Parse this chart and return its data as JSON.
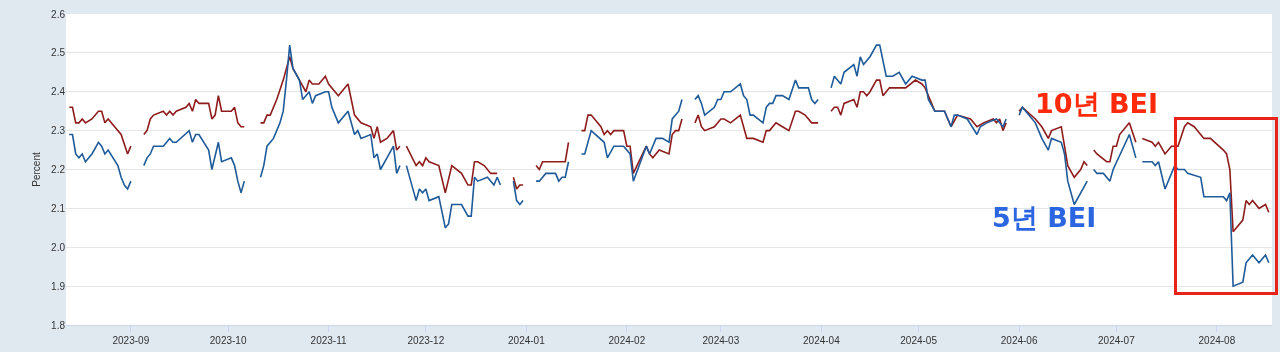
{
  "chart_data": {
    "type": "line",
    "ylabel": "Percent",
    "grid": "y",
    "marker": "none",
    "line_style": "solid",
    "xlim": [
      "2023-08-12",
      "2024-08-18"
    ],
    "xticks": [
      "2023-09",
      "2023-10",
      "2023-11",
      "2023-12",
      "2024-01",
      "2024-02",
      "2024-03",
      "2024-04",
      "2024-05",
      "2024-06",
      "2024-07",
      "2024-08"
    ],
    "ylim": [
      1.8,
      2.6
    ],
    "yticks": [
      1.8,
      1.9,
      {
        "value": 2,
        "label": "2.0"
      },
      2.1,
      2.2,
      2.3,
      2.4,
      2.5,
      2.6
    ],
    "series": [
      {
        "name": "10년 BEI",
        "color": "#8e1c1c",
        "x": [
          "2023-08-13",
          "2023-08-14",
          "2023-08-15",
          "2023-08-16",
          "2023-08-17",
          "2023-08-18",
          "2023-08-20",
          "2023-08-22",
          "2023-08-23",
          "2023-08-24",
          "2023-08-25",
          "2023-08-27",
          "2023-08-29",
          "2023-08-31",
          "2023-09-01",
          "2023-09-03",
          "2023-09-05",
          "2023-09-06",
          "2023-09-07",
          "2023-09-08",
          "2023-09-11",
          "2023-09-12",
          "2023-09-13",
          "2023-09-14",
          "2023-09-15",
          "2023-09-18",
          "2023-09-19",
          "2023-09-20",
          "2023-09-21",
          "2023-09-22",
          "2023-09-25",
          "2023-09-26",
          "2023-09-27",
          "2023-09-28",
          "2023-09-29",
          "2023-10-02",
          "2023-10-03",
          "2023-10-04",
          "2023-10-05",
          "2023-10-06",
          "2023-10-08",
          "2023-10-11",
          "2023-10-12",
          "2023-10-13",
          "2023-10-14",
          "2023-10-16",
          "2023-10-18",
          "2023-10-20",
          "2023-10-21",
          "2023-10-23",
          "2023-10-25",
          "2023-10-26",
          "2023-10-27",
          "2023-10-29",
          "2023-10-31",
          "2023-11-01",
          "2023-11-04",
          "2023-11-07",
          "2023-11-09",
          "2023-11-11",
          "2023-11-14",
          "2023-11-15",
          "2023-11-16",
          "2023-11-17",
          "2023-11-19",
          "2023-11-21",
          "2023-11-22",
          "2023-11-23",
          "2023-11-24",
          "2023-11-25",
          "2023-11-28",
          "2023-11-29",
          "2023-11-30",
          "2023-12-01",
          "2023-12-02",
          "2023-12-05",
          "2023-12-07",
          "2023-12-09",
          "2023-12-12",
          "2023-12-14",
          "2023-12-15",
          "2023-12-16",
          "2023-12-17",
          "2023-12-19",
          "2023-12-21",
          "2023-12-23",
          "2023-12-26",
          "2023-12-28",
          "2023-12-29",
          "2023-12-30",
          "2023-12-31",
          "2024-01-02",
          "2024-01-04",
          "2024-01-05",
          "2024-01-06",
          "2024-01-13",
          "2024-01-14",
          "2024-01-16",
          "2024-01-18",
          "2024-01-19",
          "2024-01-20",
          "2024-01-21",
          "2024-01-24",
          "2024-01-25",
          "2024-01-26",
          "2024-01-27",
          "2024-01-28",
          "2024-01-31",
          "2024-02-01",
          "2024-02-02",
          "2024-02-03",
          "2024-02-07",
          "2024-02-08",
          "2024-02-09",
          "2024-02-11",
          "2024-02-14",
          "2024-02-15",
          "2024-02-16",
          "2024-02-17",
          "2024-02-18",
          "2024-02-20",
          "2024-02-22",
          "2024-02-23",
          "2024-02-24",
          "2024-02-25",
          "2024-02-28",
          "2024-03-01",
          "2024-03-02",
          "2024-03-04",
          "2024-03-07",
          "2024-03-09",
          "2024-03-11",
          "2024-03-14",
          "2024-03-15",
          "2024-03-16",
          "2024-03-18",
          "2024-03-20",
          "2024-03-22",
          "2024-03-24",
          "2024-03-25",
          "2024-03-27",
          "2024-03-29",
          "2024-03-31",
          "2024-04-02",
          "2024-04-04",
          "2024-04-05",
          "2024-04-06",
          "2024-04-07",
          "2024-04-08",
          "2024-04-11",
          "2024-04-12",
          "2024-04-13",
          "2024-04-14",
          "2024-04-15",
          "2024-04-16",
          "2024-04-18",
          "2024-04-19",
          "2024-04-20",
          "2024-04-22",
          "2024-04-27",
          "2024-04-30",
          "2024-05-02",
          "2024-05-03",
          "2024-05-05",
          "2024-05-06",
          "2024-05-09",
          "2024-05-11",
          "2024-05-13",
          "2024-05-17",
          "2024-05-19",
          "2024-05-21",
          "2024-05-24",
          "2024-05-25",
          "2024-05-26",
          "2024-05-27",
          "2024-05-28",
          "2024-05-30",
          "2024-06-01",
          "2024-06-02",
          "2024-06-06",
          "2024-06-08",
          "2024-06-10",
          "2024-06-11",
          "2024-06-14",
          "2024-06-15",
          "2024-06-16",
          "2024-06-18",
          "2024-06-20",
          "2024-06-21",
          "2024-06-22",
          "2024-06-23",
          "2024-06-24",
          "2024-06-25",
          "2024-06-28",
          "2024-06-29",
          "2024-06-30",
          "2024-07-01",
          "2024-07-02",
          "2024-07-05",
          "2024-07-07",
          "2024-07-08",
          "2024-07-09",
          "2024-07-12",
          "2024-07-13",
          "2024-07-14",
          "2024-07-16",
          "2024-07-18",
          "2024-07-19",
          "2024-07-20",
          "2024-07-22",
          "2024-07-23",
          "2024-07-25",
          "2024-07-28",
          "2024-07-30",
          "2024-08-03",
          "2024-08-04",
          "2024-08-05",
          "2024-08-06",
          "2024-08-09",
          "2024-08-10",
          "2024-08-11",
          "2024-08-12",
          "2024-08-14",
          "2024-08-16",
          "2024-08-17"
        ],
        "values": [
          2.36,
          2.36,
          2.32,
          2.32,
          2.33,
          2.32,
          2.33,
          2.35,
          2.35,
          2.32,
          2.33,
          2.31,
          2.29,
          2.24,
          2.26,
          null,
          2.29,
          2.3,
          2.33,
          2.34,
          2.35,
          2.34,
          2.35,
          2.34,
          2.35,
          2.36,
          2.37,
          2.35,
          2.38,
          2.37,
          2.37,
          2.33,
          2.34,
          2.39,
          2.35,
          2.35,
          2.36,
          2.32,
          2.31,
          2.31,
          null,
          2.32,
          2.32,
          2.34,
          2.34,
          2.38,
          2.43,
          2.49,
          2.46,
          2.43,
          2.4,
          2.43,
          2.42,
          2.42,
          2.44,
          2.42,
          2.39,
          2.42,
          2.34,
          2.32,
          2.31,
          2.28,
          2.31,
          2.27,
          2.28,
          2.3,
          2.25,
          2.26,
          null,
          2.26,
          2.21,
          2.22,
          2.21,
          2.23,
          2.22,
          2.21,
          2.14,
          2.21,
          2.19,
          2.16,
          2.16,
          2.22,
          2.22,
          2.21,
          2.19,
          2.19,
          null,
          2.18,
          2.15,
          2.16,
          2.16,
          null,
          2.21,
          2.2,
          2.22,
          2.22,
          2.27,
          null,
          2.3,
          2.3,
          2.34,
          2.34,
          2.31,
          2.29,
          2.3,
          2.29,
          2.3,
          2.3,
          2.26,
          2.26,
          2.19,
          2.26,
          2.24,
          2.23,
          2.25,
          2.24,
          2.29,
          2.3,
          2.3,
          2.33,
          null,
          2.32,
          2.34,
          2.31,
          2.3,
          2.31,
          2.33,
          2.33,
          2.32,
          2.34,
          2.28,
          2.28,
          2.27,
          2.3,
          2.3,
          2.32,
          2.31,
          2.3,
          2.35,
          2.35,
          2.34,
          2.32,
          2.32,
          null,
          2.35,
          2.36,
          2.36,
          2.34,
          2.37,
          2.38,
          2.36,
          2.4,
          2.4,
          2.39,
          2.4,
          2.43,
          2.43,
          2.39,
          2.41,
          2.41,
          2.43,
          2.42,
          2.41,
          2.37,
          2.35,
          2.35,
          2.31,
          2.34,
          2.33,
          2.31,
          2.32,
          2.33,
          2.32,
          2.33,
          2.3,
          2.32,
          null,
          2.35,
          2.36,
          2.33,
          2.31,
          2.28,
          2.3,
          2.31,
          2.26,
          2.21,
          2.18,
          2.2,
          2.22,
          2.21,
          null,
          2.25,
          2.24,
          2.22,
          2.22,
          2.26,
          2.26,
          2.29,
          2.32,
          2.27,
          null,
          2.28,
          2.27,
          2.26,
          2.27,
          2.24,
          2.26,
          2.26,
          2.26,
          2.31,
          2.32,
          2.31,
          2.28,
          2.28,
          2.25,
          2.24,
          2.2,
          2.04,
          2.07,
          2.12,
          2.11,
          2.12,
          2.1,
          2.11,
          2.09
        ]
      },
      {
        "name": "5년 BEI",
        "color": "#1f5b99",
        "x": [
          "2023-08-13",
          "2023-08-14",
          "2023-08-15",
          "2023-08-16",
          "2023-08-17",
          "2023-08-18",
          "2023-08-20",
          "2023-08-22",
          "2023-08-23",
          "2023-08-24",
          "2023-08-25",
          "2023-08-28",
          "2023-08-29",
          "2023-08-30",
          "2023-08-31",
          "2023-09-01",
          "2023-09-03",
          "2023-09-05",
          "2023-09-06",
          "2023-09-07",
          "2023-09-08",
          "2023-09-11",
          "2023-09-13",
          "2023-09-14",
          "2023-09-15",
          "2023-09-19",
          "2023-09-20",
          "2023-09-21",
          "2023-09-22",
          "2023-09-25",
          "2023-09-26",
          "2023-09-28",
          "2023-09-29",
          "2023-10-02",
          "2023-10-03",
          "2023-10-04",
          "2023-10-05",
          "2023-10-06",
          "2023-10-08",
          "2023-10-11",
          "2023-10-12",
          "2023-10-13",
          "2023-10-15",
          "2023-10-17",
          "2023-10-18",
          "2023-10-19",
          "2023-10-20",
          "2023-10-21",
          "2023-10-23",
          "2023-10-24",
          "2023-10-25",
          "2023-10-26",
          "2023-10-27",
          "2023-10-28",
          "2023-10-31",
          "2023-11-01",
          "2023-11-02",
          "2023-11-04",
          "2023-11-07",
          "2023-11-09",
          "2023-11-10",
          "2023-11-11",
          "2023-11-14",
          "2023-11-15",
          "2023-11-16",
          "2023-11-17",
          "2023-11-19",
          "2023-11-21",
          "2023-11-22",
          "2023-11-23",
          "2023-11-24",
          "2023-11-25",
          "2023-11-28",
          "2023-11-29",
          "2023-11-30",
          "2023-12-01",
          "2023-12-02",
          "2023-12-05",
          "2023-12-07",
          "2023-12-08",
          "2023-12-09",
          "2023-12-12",
          "2023-12-14",
          "2023-12-15",
          "2023-12-16",
          "2023-12-17",
          "2023-12-20",
          "2023-12-22",
          "2023-12-23",
          "2023-12-24",
          "2023-12-26",
          "2023-12-28",
          "2023-12-29",
          "2023-12-30",
          "2023-12-31",
          "2024-01-02",
          "2024-01-04",
          "2024-01-05",
          "2024-01-07",
          "2024-01-10",
          "2024-01-11",
          "2024-01-12",
          "2024-01-13",
          "2024-01-14",
          "2024-01-16",
          "2024-01-18",
          "2024-01-19",
          "2024-01-21",
          "2024-01-25",
          "2024-01-26",
          "2024-01-28",
          "2024-01-31",
          "2024-02-02",
          "2024-02-03",
          "2024-02-07",
          "2024-02-08",
          "2024-02-10",
          "2024-02-12",
          "2024-02-14",
          "2024-02-15",
          "2024-02-16",
          "2024-02-17",
          "2024-02-18",
          "2024-02-20",
          "2024-02-22",
          "2024-02-23",
          "2024-02-24",
          "2024-02-25",
          "2024-02-28",
          "2024-02-29",
          "2024-03-01",
          "2024-03-02",
          "2024-03-04",
          "2024-03-07",
          "2024-03-08",
          "2024-03-09",
          "2024-03-10",
          "2024-03-11",
          "2024-03-14",
          "2024-03-15",
          "2024-03-16",
          "2024-03-17",
          "2024-03-18",
          "2024-03-20",
          "2024-03-22",
          "2024-03-24",
          "2024-03-25",
          "2024-03-28",
          "2024-03-29",
          "2024-03-30",
          "2024-03-31",
          "2024-04-02",
          "2024-04-04",
          "2024-04-05",
          "2024-04-07",
          "2024-04-08",
          "2024-04-11",
          "2024-04-12",
          "2024-04-13",
          "2024-04-14",
          "2024-04-16",
          "2024-04-18",
          "2024-04-19",
          "2024-04-21",
          "2024-04-23",
          "2024-04-25",
          "2024-04-27",
          "2024-04-29",
          "2024-05-02",
          "2024-05-03",
          "2024-05-04",
          "2024-05-06",
          "2024-05-09",
          "2024-05-11",
          "2024-05-12",
          "2024-05-13",
          "2024-05-16",
          "2024-05-19",
          "2024-05-20",
          "2024-05-22",
          "2024-05-25",
          "2024-05-26",
          "2024-05-27",
          "2024-05-28",
          "2024-05-30",
          "2024-06-01",
          "2024-06-02",
          "2024-06-06",
          "2024-06-08",
          "2024-06-10",
          "2024-06-11",
          "2024-06-14",
          "2024-06-15",
          "2024-06-16",
          "2024-06-18",
          "2024-06-20",
          "2024-06-22",
          "2024-06-23",
          "2024-06-24",
          "2024-06-25",
          "2024-06-27",
          "2024-06-29",
          "2024-06-30",
          "2024-07-05",
          "2024-07-07",
          "2024-07-08",
          "2024-07-09",
          "2024-07-12",
          "2024-07-13",
          "2024-07-14",
          "2024-07-16",
          "2024-07-19",
          "2024-07-20",
          "2024-07-21",
          "2024-07-22",
          "2024-07-23",
          "2024-07-27",
          "2024-07-28",
          "2024-08-03",
          "2024-08-04",
          "2024-08-05",
          "2024-08-06",
          "2024-08-09",
          "2024-08-10",
          "2024-08-12",
          "2024-08-14",
          "2024-08-16",
          "2024-08-17"
        ],
        "values": [
          2.29,
          2.29,
          2.24,
          2.23,
          2.24,
          2.22,
          2.24,
          2.27,
          2.26,
          2.24,
          2.25,
          2.21,
          2.18,
          2.16,
          2.15,
          2.17,
          null,
          2.21,
          2.23,
          2.24,
          2.26,
          2.26,
          2.28,
          2.27,
          2.27,
          2.3,
          2.27,
          2.29,
          2.29,
          2.25,
          2.2,
          2.27,
          2.22,
          2.23,
          2.21,
          2.17,
          2.14,
          2.17,
          null,
          2.18,
          2.21,
          2.26,
          2.28,
          2.32,
          2.35,
          2.43,
          2.52,
          2.46,
          2.43,
          2.38,
          2.39,
          2.4,
          2.37,
          2.39,
          2.4,
          2.4,
          2.36,
          2.32,
          2.35,
          2.29,
          2.3,
          2.28,
          2.29,
          2.23,
          2.24,
          2.2,
          2.23,
          2.26,
          2.19,
          2.21,
          null,
          2.21,
          2.12,
          2.15,
          2.14,
          2.15,
          2.12,
          2.13,
          2.05,
          2.06,
          2.11,
          2.11,
          2.08,
          2.08,
          2.18,
          2.17,
          2.18,
          2.16,
          2.18,
          2.16,
          null,
          2.17,
          2.12,
          2.11,
          2.12,
          null,
          2.17,
          2.17,
          2.19,
          2.19,
          2.17,
          2.18,
          2.18,
          2.22,
          null,
          2.24,
          2.24,
          2.3,
          2.27,
          2.23,
          2.26,
          2.26,
          2.24,
          2.17,
          2.26,
          2.24,
          2.28,
          2.28,
          2.27,
          2.33,
          2.34,
          2.35,
          2.38,
          null,
          2.38,
          2.39,
          2.37,
          2.34,
          2.36,
          2.38,
          2.38,
          2.4,
          2.4,
          2.42,
          2.39,
          2.38,
          2.34,
          2.34,
          2.32,
          2.36,
          2.37,
          2.37,
          2.39,
          2.39,
          2.38,
          2.43,
          2.41,
          2.41,
          2.38,
          2.37,
          2.38,
          null,
          2.41,
          2.44,
          2.42,
          2.45,
          2.47,
          2.44,
          2.49,
          2.47,
          2.49,
          2.52,
          2.52,
          2.44,
          2.44,
          2.45,
          2.42,
          2.44,
          2.43,
          2.43,
          2.38,
          2.35,
          2.35,
          2.31,
          2.34,
          2.34,
          2.33,
          2.29,
          2.31,
          2.32,
          2.33,
          2.32,
          2.31,
          2.33,
          null,
          2.34,
          2.36,
          2.32,
          2.28,
          2.25,
          2.28,
          2.27,
          2.24,
          2.17,
          2.11,
          2.14,
          2.17,
          null,
          2.2,
          2.19,
          2.19,
          2.17,
          2.2,
          2.29,
          2.23,
          null,
          2.22,
          2.22,
          2.21,
          2.22,
          2.15,
          2.21,
          2.2,
          2.2,
          2.2,
          2.19,
          2.18,
          2.13,
          2.13,
          2.12,
          2.14,
          1.9,
          1.91,
          1.96,
          1.98,
          1.96,
          1.98,
          1.96
        ]
      }
    ]
  }
}
